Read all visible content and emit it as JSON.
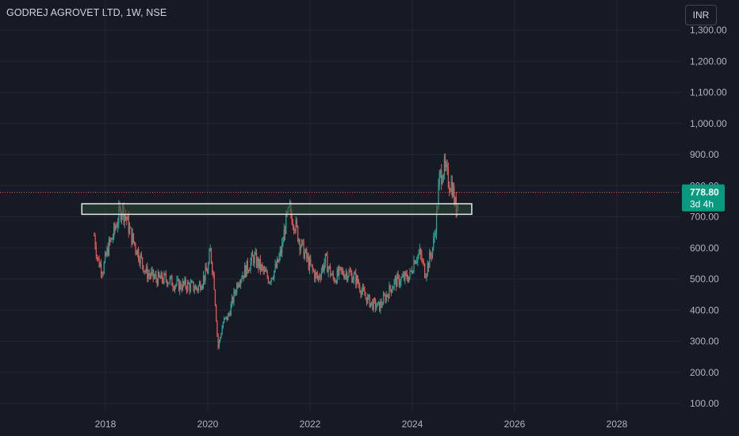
{
  "header": {
    "symbol_title": "GODREJ AGROVET LTD, 1W, NSE",
    "currency": "INR"
  },
  "price_label": {
    "last": "778.80",
    "countdown": "3d 4h"
  },
  "colors": {
    "background": "#161a25",
    "grid": "#232734",
    "up": "#26a69a",
    "down": "#ef5350",
    "zone_fill": "#2a4a35",
    "zone_border": "#e6e6e6",
    "price_line": "#ef5350",
    "price_tag": "#089981",
    "axis_text": "#b2b5be"
  },
  "chart_data": {
    "type": "candlestick",
    "interval": "1W",
    "y_ticks": [
      "100.00",
      "200.00",
      "300.00",
      "400.00",
      "500.00",
      "600.00",
      "700.00",
      "800.00",
      "900.00",
      "1,000.00",
      "1,100.00",
      "1,200.00",
      "1,300.00"
    ],
    "x_ticks": [
      "2018",
      "2020",
      "2022",
      "2024",
      "2026",
      "2028"
    ],
    "ylim": [
      60,
      1340
    ],
    "xlim": [
      2017.45,
      2029.2
    ],
    "last_price": 778.8,
    "zone": {
      "x0": 2017.6,
      "x1": 2025.1,
      "y0": 708,
      "y1": 742
    },
    "path": [
      [
        2017.78,
        640
      ],
      [
        2017.85,
        560
      ],
      [
        2017.95,
        530
      ],
      [
        2018.05,
        600
      ],
      [
        2018.15,
        640
      ],
      [
        2018.25,
        700
      ],
      [
        2018.32,
        730
      ],
      [
        2018.4,
        700
      ],
      [
        2018.5,
        640
      ],
      [
        2018.6,
        600
      ],
      [
        2018.7,
        560
      ],
      [
        2018.8,
        520
      ],
      [
        2019.0,
        500
      ],
      [
        2019.2,
        500
      ],
      [
        2019.4,
        480
      ],
      [
        2019.6,
        480
      ],
      [
        2019.8,
        470
      ],
      [
        2020.0,
        530
      ],
      [
        2020.05,
        590
      ],
      [
        2020.12,
        500
      ],
      [
        2020.2,
        280
      ],
      [
        2020.3,
        360
      ],
      [
        2020.4,
        380
      ],
      [
        2020.5,
        440
      ],
      [
        2020.6,
        500
      ],
      [
        2020.7,
        520
      ],
      [
        2020.9,
        570
      ],
      [
        2021.1,
        520
      ],
      [
        2021.2,
        500
      ],
      [
        2021.35,
        540
      ],
      [
        2021.45,
        600
      ],
      [
        2021.52,
        680
      ],
      [
        2021.6,
        720
      ],
      [
        2021.7,
        680
      ],
      [
        2021.8,
        620
      ],
      [
        2021.9,
        580
      ],
      [
        2022.0,
        540
      ],
      [
        2022.15,
        500
      ],
      [
        2022.3,
        560
      ],
      [
        2022.45,
        500
      ],
      [
        2022.6,
        520
      ],
      [
        2022.75,
        520
      ],
      [
        2022.9,
        500
      ],
      [
        2023.05,
        450
      ],
      [
        2023.2,
        420
      ],
      [
        2023.35,
        410
      ],
      [
        2023.5,
        450
      ],
      [
        2023.65,
        490
      ],
      [
        2023.8,
        500
      ],
      [
        2023.95,
        510
      ],
      [
        2024.05,
        570
      ],
      [
        2024.15,
        580
      ],
      [
        2024.25,
        520
      ],
      [
        2024.35,
        570
      ],
      [
        2024.42,
        620
      ],
      [
        2024.48,
        720
      ],
      [
        2024.53,
        820
      ],
      [
        2024.6,
        860
      ],
      [
        2024.7,
        820
      ],
      [
        2024.78,
        800
      ],
      [
        2024.85,
        720
      ],
      [
        2024.9,
        778
      ]
    ]
  }
}
